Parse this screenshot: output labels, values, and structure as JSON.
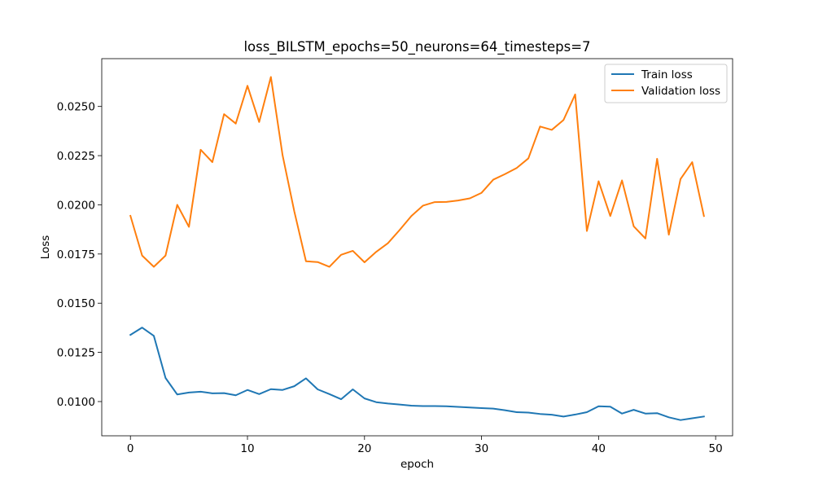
{
  "chart_data": {
    "type": "line",
    "title": "loss_BILSTM_epochs=50_neurons=64_timesteps=7",
    "xlabel": "epoch",
    "ylabel": "Loss",
    "xlim": [
      -2.45,
      51.45
    ],
    "ylim": [
      0.00826,
      0.02743
    ],
    "xticks": [
      0,
      10,
      20,
      30,
      40,
      50
    ],
    "yticks": [
      0.01,
      0.0125,
      0.015,
      0.0175,
      0.02,
      0.0225,
      0.025
    ],
    "xtick_labels": [
      "0",
      "10",
      "20",
      "30",
      "40",
      "50"
    ],
    "ytick_labels": [
      "0.0100",
      "0.0125",
      "0.0150",
      "0.0175",
      "0.0200",
      "0.0225",
      "0.0250"
    ],
    "grid": false,
    "legend_position": "top-right",
    "x": [
      0,
      1,
      2,
      3,
      4,
      5,
      6,
      7,
      8,
      9,
      10,
      11,
      12,
      13,
      14,
      15,
      16,
      17,
      18,
      19,
      20,
      21,
      22,
      23,
      24,
      25,
      26,
      27,
      28,
      29,
      30,
      31,
      32,
      33,
      34,
      35,
      36,
      37,
      38,
      39,
      40,
      41,
      42,
      43,
      44,
      45,
      46,
      47,
      48,
      49
    ],
    "series": [
      {
        "name": "Train loss",
        "color": "#1f77b4",
        "values": [
          0.01339,
          0.01376,
          0.01334,
          0.0112,
          0.01036,
          0.01046,
          0.0105,
          0.01042,
          0.01043,
          0.01032,
          0.01059,
          0.01038,
          0.01063,
          0.01059,
          0.01078,
          0.01118,
          0.01062,
          0.01038,
          0.01012,
          0.01062,
          0.01016,
          0.00997,
          0.0099,
          0.00985,
          0.00979,
          0.00977,
          0.00977,
          0.00976,
          0.00973,
          0.0097,
          0.00967,
          0.00964,
          0.00956,
          0.00946,
          0.00944,
          0.00937,
          0.00933,
          0.00924,
          0.00934,
          0.00946,
          0.00976,
          0.00974,
          0.00939,
          0.00958,
          0.00939,
          0.00941,
          0.0092,
          0.00906,
          0.00915,
          0.00924
        ]
      },
      {
        "name": "Validation loss",
        "color": "#ff7f0e",
        "values": [
          0.01944,
          0.01742,
          0.01685,
          0.01742,
          0.02,
          0.01888,
          0.0228,
          0.02217,
          0.02461,
          0.02413,
          0.02605,
          0.02421,
          0.0265,
          0.02252,
          0.01967,
          0.01713,
          0.01709,
          0.01685,
          0.01746,
          0.01766,
          0.01708,
          0.01761,
          0.01805,
          0.01872,
          0.01943,
          0.01996,
          0.02014,
          0.02015,
          0.02022,
          0.02033,
          0.02061,
          0.02128,
          0.02156,
          0.02187,
          0.02236,
          0.02398,
          0.02381,
          0.02431,
          0.02561,
          0.01867,
          0.0212,
          0.01943,
          0.02124,
          0.01891,
          0.01829,
          0.02234,
          0.01848,
          0.02131,
          0.02217,
          0.01943
        ]
      }
    ]
  }
}
